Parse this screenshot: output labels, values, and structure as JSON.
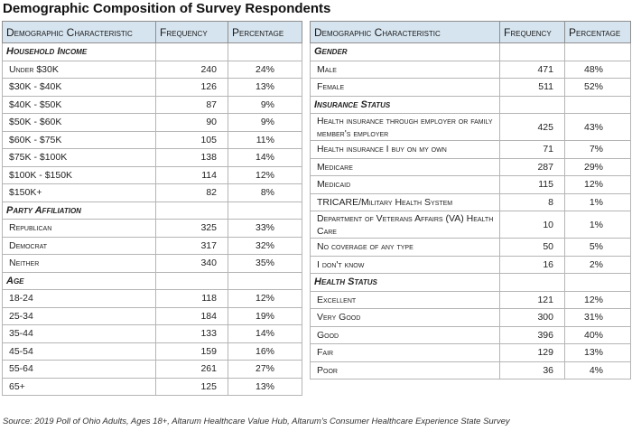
{
  "title": "Demographic Composition of Survey Respondents",
  "headers": {
    "characteristic": "Demographic Characteristic",
    "frequency": "Frequency",
    "percentage": "Percentage"
  },
  "left": {
    "household_income": {
      "label": "Household Income",
      "rows": [
        {
          "label": "Under $30K",
          "freq": "240",
          "pct": "24%"
        },
        {
          "label": "$30K - $40K",
          "freq": "126",
          "pct": "13%"
        },
        {
          "label": "$40K - $50K",
          "freq": "87",
          "pct": "9%"
        },
        {
          "label": "$50K - $60K",
          "freq": "90",
          "pct": "9%"
        },
        {
          "label": "$60K - $75K",
          "freq": "105",
          "pct": "11%"
        },
        {
          "label": "$75K - $100K",
          "freq": "138",
          "pct": "14%"
        },
        {
          "label": "$100K - $150K",
          "freq": "114",
          "pct": "12%"
        },
        {
          "label": "$150K+",
          "freq": "82",
          "pct": "8%"
        }
      ]
    },
    "party": {
      "label": "Party Affiliation",
      "rows": [
        {
          "label": "Republican",
          "freq": "325",
          "pct": "33%"
        },
        {
          "label": "Democrat",
          "freq": "317",
          "pct": "32%"
        },
        {
          "label": "Neither",
          "freq": "340",
          "pct": "35%"
        }
      ]
    },
    "age": {
      "label": "Age",
      "rows": [
        {
          "label": "18-24",
          "freq": "118",
          "pct": "12%"
        },
        {
          "label": "25-34",
          "freq": "184",
          "pct": "19%"
        },
        {
          "label": "35-44",
          "freq": "133",
          "pct": "14%"
        },
        {
          "label": "45-54",
          "freq": "159",
          "pct": "16%"
        },
        {
          "label": "55-64",
          "freq": "261",
          "pct": "27%"
        },
        {
          "label": "65+",
          "freq": "125",
          "pct": "13%"
        }
      ]
    }
  },
  "right": {
    "gender": {
      "label": "Gender",
      "rows": [
        {
          "label": "Male",
          "freq": "471",
          "pct": "48%"
        },
        {
          "label": "Female",
          "freq": "511",
          "pct": "52%"
        }
      ]
    },
    "insurance": {
      "label": "Insurance Status",
      "rows": [
        {
          "label": "Health insurance through employer or family member's employer",
          "freq": "425",
          "pct": "43%"
        },
        {
          "label": "Health insurance I buy on my own",
          "freq": "71",
          "pct": "7%"
        },
        {
          "label": "Medicare",
          "freq": "287",
          "pct": "29%"
        },
        {
          "label": "Medicaid",
          "freq": "115",
          "pct": "12%"
        },
        {
          "label": "TRICARE/Military Health System",
          "freq": "8",
          "pct": "1%"
        },
        {
          "label": "Department of Veterans Affairs (VA) Health Care",
          "freq": "10",
          "pct": "1%"
        },
        {
          "label": "No coverage of any type",
          "freq": "50",
          "pct": "5%"
        },
        {
          "label": "I don't know",
          "freq": "16",
          "pct": "2%"
        }
      ]
    },
    "health": {
      "label": "Health Status",
      "rows": [
        {
          "label": "Excellent",
          "freq": "121",
          "pct": "12%"
        },
        {
          "label": "Very Good",
          "freq": "300",
          "pct": "31%"
        },
        {
          "label": "Good",
          "freq": "396",
          "pct": "40%"
        },
        {
          "label": "Fair",
          "freq": "129",
          "pct": "13%"
        },
        {
          "label": "Poor",
          "freq": "36",
          "pct": "4%"
        }
      ]
    }
  },
  "source": "Source: 2019 Poll of Ohio Adults, Ages 18+, Altarum Healthcare Value Hub, Altarum's Consumer Healthcare Experience State Survey"
}
